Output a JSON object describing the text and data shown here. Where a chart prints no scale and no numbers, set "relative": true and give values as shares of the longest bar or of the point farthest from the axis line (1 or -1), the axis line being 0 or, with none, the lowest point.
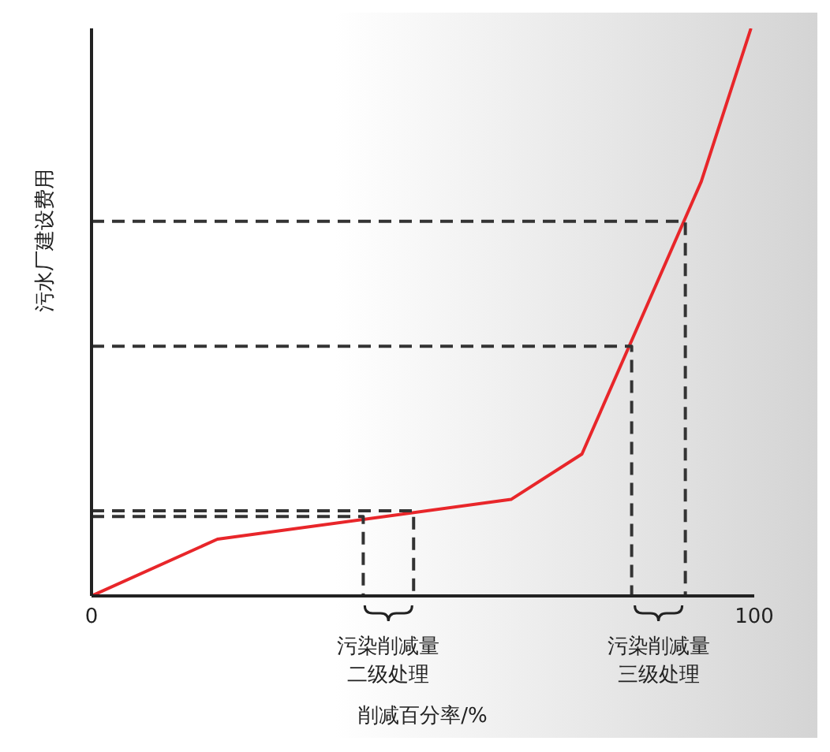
{
  "chart_data": {
    "type": "line",
    "relative": true,
    "xlabel": "削减百分率/%",
    "ylabel": "污水厂建设费用",
    "xlim": [
      0,
      100
    ],
    "xticks": [
      0,
      100
    ],
    "grid": false,
    "marker": "none",
    "series": [
      {
        "color": "#e8262a",
        "line_style": "solid",
        "x": [
          0,
          19,
          63.3,
          74,
          92,
          99.5
        ],
        "values": [
          0,
          0.1,
          0.17,
          0.25,
          0.73,
          1
        ]
      },
      {
        "color": "#333333",
        "line_style": "dashed",
        "x": [
          0,
          89.6,
          89.6
        ],
        "values": [
          0.66,
          0.66,
          0
        ]
      },
      {
        "color": "#333333",
        "line_style": "dashed",
        "x": [
          0,
          81.5,
          81.5
        ],
        "values": [
          0.44,
          0.44,
          0
        ]
      },
      {
        "color": "#333333",
        "line_style": "dashed",
        "x": [
          0,
          48.6,
          48.6
        ],
        "values": [
          0.15,
          0.15,
          0
        ]
      },
      {
        "color": "#333333",
        "line_style": "dashed",
        "x": [
          0,
          41,
          41
        ],
        "values": [
          0.14,
          0.14,
          0
        ]
      }
    ],
    "annotations": [
      "污染削减量二级处理",
      "污染削减量三级处理"
    ]
  }
}
